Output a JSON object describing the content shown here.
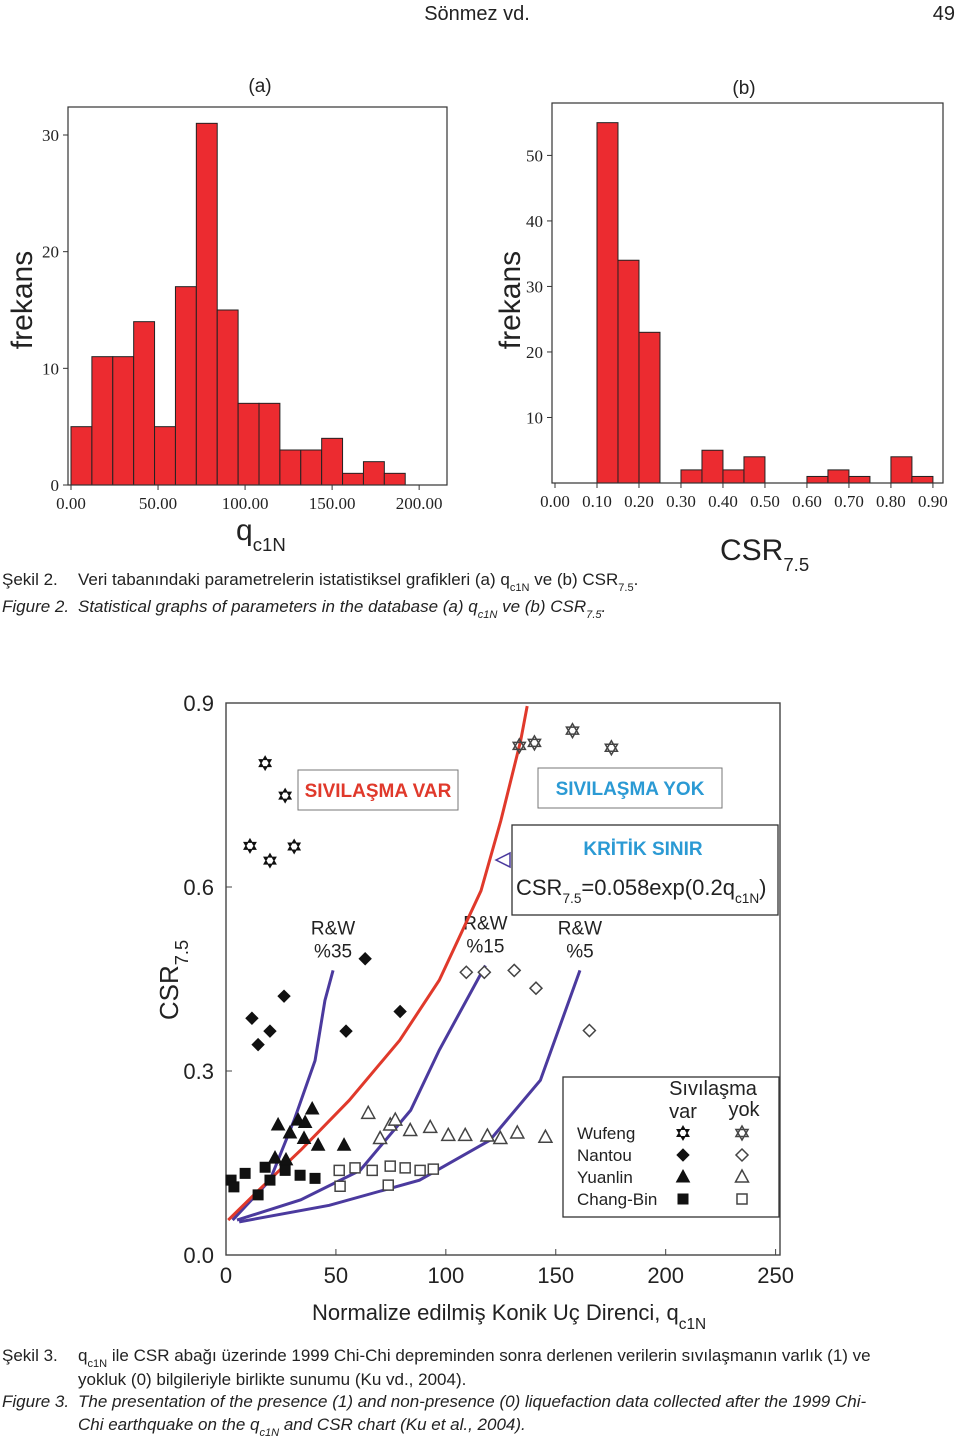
{
  "header": {
    "left": "Sönmez vd.",
    "page": "49"
  },
  "chart_data": [
    {
      "type": "histogram",
      "panel_label": "(a)",
      "xlabel": [
        "q",
        "c1N"
      ],
      "ylabel": "frekans",
      "color": "#ec2b30",
      "bins": [
        0,
        12,
        24,
        36,
        48,
        60,
        72,
        84,
        96,
        108,
        120,
        132,
        144,
        156,
        168,
        180,
        192
      ],
      "counts": [
        5,
        11,
        11,
        14,
        5,
        17,
        31,
        15,
        7,
        7,
        3,
        3,
        4,
        1,
        2,
        1
      ],
      "xlim": [
        0,
        216
      ],
      "ylim": [
        0,
        32.4
      ],
      "xticks": [
        {
          "value": 0,
          "label": "0.00"
        },
        {
          "value": 50,
          "label": "50.00"
        },
        {
          "value": 100,
          "label": "100.00"
        },
        {
          "value": 150,
          "label": "150.00"
        },
        {
          "value": 200,
          "label": "200.00"
        }
      ],
      "yticks": [
        0,
        10,
        20,
        30
      ]
    },
    {
      "type": "histogram",
      "panel_label": "(b)",
      "xlabel": [
        "CSR",
        "7.5"
      ],
      "ylabel": "frekans",
      "color": "#ec2b30",
      "bins": [
        0.1,
        0.15,
        0.2,
        0.25,
        0.3,
        0.35,
        0.4,
        0.45,
        0.5,
        0.55,
        0.6,
        0.65,
        0.7,
        0.75,
        0.8,
        0.85,
        0.9
      ],
      "counts": [
        55,
        34,
        23,
        0,
        2,
        5,
        2,
        4,
        0,
        0,
        1,
        2,
        1,
        0,
        4,
        1
      ],
      "xlim": [
        0,
        0.924
      ],
      "ylim": [
        0,
        58
      ],
      "xticks": [
        {
          "value": 0,
          "label": "0.00"
        },
        {
          "value": 0.1,
          "label": "0.10"
        },
        {
          "value": 0.2,
          "label": "0.20"
        },
        {
          "value": 0.3,
          "label": "0.30"
        },
        {
          "value": 0.4,
          "label": "0.40"
        },
        {
          "value": 0.5,
          "label": "0.50"
        },
        {
          "value": 0.6,
          "label": "0.60"
        },
        {
          "value": 0.7,
          "label": "0.70"
        },
        {
          "value": 0.8,
          "label": "0.80"
        },
        {
          "value": 0.9,
          "label": "0.90"
        }
      ],
      "yticks": [
        10,
        20,
        30,
        40,
        50
      ]
    },
    {
      "type": "scatter",
      "xlabel": [
        "Normalize edilmiş Konik Uç Direnci, q",
        "c1N"
      ],
      "ylabel": [
        "CSR",
        "7.5"
      ],
      "xlim": [
        0,
        252
      ],
      "ylim": [
        0,
        0.9
      ],
      "xticks": [
        0,
        50,
        100,
        150,
        200,
        250
      ],
      "yticks": [
        {
          "value": 0,
          "label": "0.0"
        },
        {
          "value": 0.3,
          "label": "0.3"
        },
        {
          "value": 0.6,
          "label": "0.6"
        },
        {
          "value": 0.9,
          "label": "0.9"
        }
      ],
      "marker_color": "#111",
      "series": [
        {
          "name": "Wufeng",
          "marker": "star",
          "var": {
            "x": [
              17.8,
              26.9,
              10.9,
              20,
              31
            ],
            "y": [
              0.802,
              0.749,
              0.667,
              0.643,
              0.666
            ]
          },
          "yok": {
            "x": [
              133.4,
              140.3,
              157.6,
              175.3
            ],
            "y": [
              0.83,
              0.835,
              0.855,
              0.827
            ]
          }
        },
        {
          "name": "Nantou",
          "marker": "diamond",
          "var": {
            "x": [
              63.3,
              26.4,
              79.2,
              11.8,
              54.6,
              20,
              14.6
            ],
            "y": [
              0.483,
              0.422,
              0.397,
              0.386,
              0.365,
              0.365,
              0.343
            ]
          },
          "yok": {
            "x": [
              109.3,
              117.5,
              131.1,
              141,
              165.3
            ],
            "y": [
              0.461,
              0.461,
              0.464,
              0.435,
              0.366
            ]
          }
        },
        {
          "name": "Yuanlin",
          "marker": "triangle",
          "var": {
            "x": [
              39.2,
              32.8,
              23.7,
              29.1,
              35.5,
              22.3,
              27.3,
              41.9,
              53.7,
              36
            ],
            "y": [
              0.238,
              0.22,
              0.212,
              0.199,
              0.19,
              0.158,
              0.155,
              0.179,
              0.179,
              0.216
            ]
          },
          "yok": {
            "x": [
              64.7,
              74.7,
              83.8,
              92.9,
              101.1,
              108.8,
              118.9,
              124.8,
              132.5,
              145.3,
              70.1,
              77
            ],
            "y": [
              0.231,
              0.212,
              0.203,
              0.208,
              0.195,
              0.195,
              0.194,
              0.19,
              0.199,
              0.192,
              0.19,
              0.22
            ]
          }
        },
        {
          "name": "Chang-Bin",
          "marker": "square",
          "var": {
            "x": [
              2.3,
              3.6,
              8.7,
              17.8,
              20,
              26.9,
              33.7,
              40.5,
              14.6
            ],
            "y": [
              0.122,
              0.111,
              0.133,
              0.143,
              0.122,
              0.138,
              0.13,
              0.125,
              0.098
            ]
          },
          "yok": {
            "x": [
              51.5,
              58.7,
              66.5,
              74.7,
              81.5,
              88.3,
              94.3,
              73.8,
              51.9
            ],
            "y": [
              0.138,
              0.142,
              0.138,
              0.145,
              0.142,
              0.138,
              0.14,
              0.114,
              0.112
            ]
          }
        }
      ],
      "curves": [
        {
          "label": [
            "R&W",
            "%35"
          ],
          "color": "#4b3a9e",
          "x": [
            3,
            20,
            31,
            40.5,
            45,
            48.7
          ],
          "y": [
            0.057,
            0.122,
            0.22,
            0.317,
            0.415,
            0.464
          ]
        },
        {
          "label": [
            "R&W",
            "%15"
          ],
          "color": "#4b3a9e",
          "x": [
            5,
            34,
            61,
            84,
            97,
            118
          ],
          "y": [
            0.057,
            0.09,
            0.138,
            0.236,
            0.334,
            0.472
          ]
        },
        {
          "label": [
            "R&W",
            "%5"
          ],
          "color": "#4b3a9e",
          "x": [
            6,
            47,
            88,
            120,
            143,
            161
          ],
          "y": [
            0.054,
            0.081,
            0.122,
            0.187,
            0.285,
            0.464
          ]
        },
        {
          "color": "#e0392b",
          "x": [
            1,
            15,
            34,
            56,
            79,
            97,
            116,
            125,
            134,
            137
          ],
          "y": [
            0.057,
            0.106,
            0.171,
            0.252,
            0.35,
            0.448,
            0.594,
            0.708,
            0.838,
            0.895
          ]
        }
      ],
      "annotations": [
        {
          "text": "SIVILAŞMA VAR",
          "color": "#e0392b"
        },
        {
          "text": "SIVILAŞMA YOK",
          "color": "#2b9ad4"
        },
        {
          "text": "KRİTİK SINIR",
          "color": "#2b9ad4"
        }
      ],
      "formula": [
        "CSR",
        "7.5",
        "=0.058exp(0.2q",
        "c1N",
        ")"
      ],
      "legend": {
        "title": "Sıvılaşma",
        "columns": [
          "var",
          "yok"
        ]
      }
    }
  ],
  "captions": [
    {
      "label": "Şekil 2.",
      "italic": false,
      "lines": [
        [
          "Veri tabanındaki parametrelerin istatistiksel grafikleri (a) q",
          "c1N",
          " ve (b) CSR",
          "7.5",
          "."
        ]
      ]
    },
    {
      "label": "Figure 2.",
      "italic": true,
      "lines": [
        [
          "Statistical graphs of parameters in the database (a) q",
          "c1N",
          " ve (b) CSR",
          "7.5",
          "."
        ]
      ]
    },
    {
      "label": "Şekil 3.",
      "italic": false,
      "lines": [
        [
          "q",
          "c1N",
          " ile CSR abağı üzerinde 1999 Chi-Chi depreminden sonra derlenen verilerin sıvılaşmanın varlık (1) ve"
        ],
        [
          "yokluk (0) bilgileriyle birlikte sunumu (Ku vd., 2004)."
        ]
      ]
    },
    {
      "label": "Figure 3.",
      "italic": true,
      "lines": [
        [
          "The presentation of the presence (1) and non-presence (0) liquefaction data collected after the 1999 Chi-"
        ],
        [
          "Chi earthquake on the q",
          "c1N",
          " and CSR chart (Ku et al., 2004)."
        ]
      ]
    }
  ]
}
